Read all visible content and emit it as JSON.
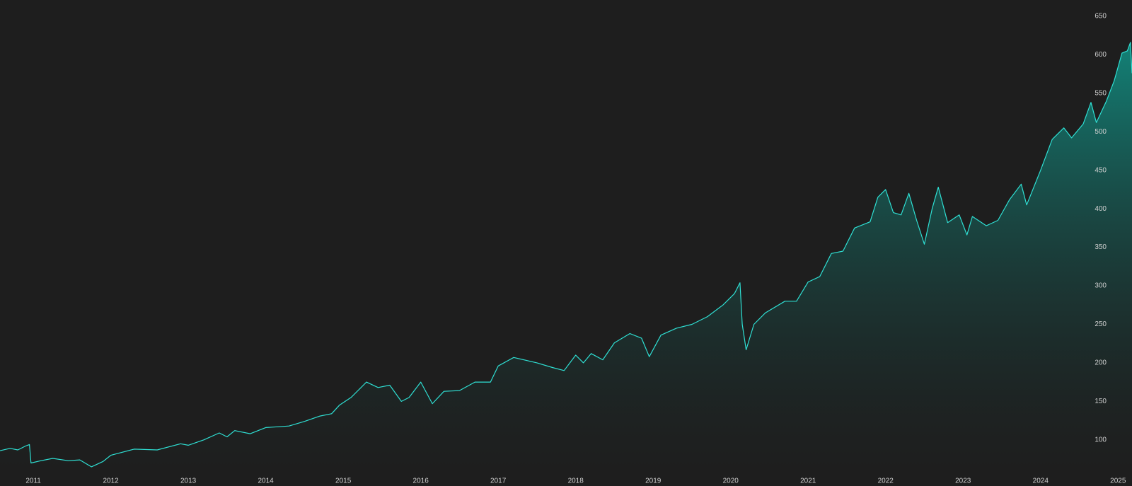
{
  "chart_data": {
    "type": "area",
    "x": [
      2010.57,
      2010.7,
      2010.8,
      2010.9,
      2010.95,
      2010.97,
      2011.1,
      2011.25,
      2011.45,
      2011.6,
      2011.75,
      2011.9,
      2012.0,
      2012.3,
      2012.6,
      2012.9,
      2013.0,
      2013.2,
      2013.4,
      2013.5,
      2013.6,
      2013.8,
      2014.0,
      2014.3,
      2014.5,
      2014.7,
      2014.85,
      2014.95,
      2015.1,
      2015.3,
      2015.45,
      2015.6,
      2015.75,
      2015.85,
      2016.0,
      2016.15,
      2016.3,
      2016.5,
      2016.7,
      2016.9,
      2017.0,
      2017.2,
      2017.5,
      2017.7,
      2017.85,
      2018.0,
      2018.1,
      2018.2,
      2018.35,
      2018.5,
      2018.7,
      2018.85,
      2018.95,
      2019.1,
      2019.3,
      2019.5,
      2019.7,
      2019.9,
      2020.05,
      2020.12,
      2020.15,
      2020.2,
      2020.3,
      2020.45,
      2020.7,
      2020.85,
      2021.0,
      2021.15,
      2021.3,
      2021.45,
      2021.6,
      2021.8,
      2021.9,
      2022.0,
      2022.1,
      2022.2,
      2022.3,
      2022.4,
      2022.5,
      2022.6,
      2022.68,
      2022.8,
      2022.95,
      2023.05,
      2023.12,
      2023.3,
      2023.45,
      2023.6,
      2023.75,
      2023.82,
      2024.0,
      2024.15,
      2024.3,
      2024.4,
      2024.55,
      2024.65,
      2024.72,
      2024.85,
      2024.95,
      2025.05,
      2025.12,
      2025.16,
      2025.18
    ],
    "values": [
      86,
      89,
      87,
      92,
      94,
      70,
      73,
      76,
      73,
      74,
      65,
      72,
      80,
      88,
      87,
      95,
      93,
      100,
      109,
      104,
      112,
      108,
      116,
      118,
      124,
      131,
      134,
      145,
      155,
      175,
      168,
      171,
      150,
      155,
      175,
      147,
      163,
      164,
      175,
      175,
      196,
      207,
      200,
      194,
      190,
      210,
      200,
      212,
      204,
      226,
      238,
      232,
      208,
      236,
      245,
      250,
      260,
      275,
      290,
      304,
      250,
      217,
      250,
      265,
      280,
      280,
      305,
      312,
      342,
      345,
      375,
      383,
      415,
      425,
      395,
      392,
      420,
      385,
      354,
      400,
      428,
      382,
      392,
      366,
      390,
      378,
      385,
      412,
      432,
      405,
      450,
      490,
      505,
      492,
      510,
      538,
      512,
      540,
      566,
      602,
      605,
      616,
      576
    ],
    "color": "#2fe0d4",
    "fill_color": "#12877c",
    "xlim": [
      2010.57,
      2025.18
    ],
    "xticks": [
      2011,
      2012,
      2013,
      2014,
      2015,
      2016,
      2017,
      2018,
      2019,
      2020,
      2021,
      2022,
      2023,
      2024,
      2025
    ],
    "ylim": [
      53,
      671
    ],
    "yticks": [
      100,
      150,
      200,
      250,
      300,
      350,
      400,
      450,
      500,
      550,
      600,
      650
    ]
  }
}
